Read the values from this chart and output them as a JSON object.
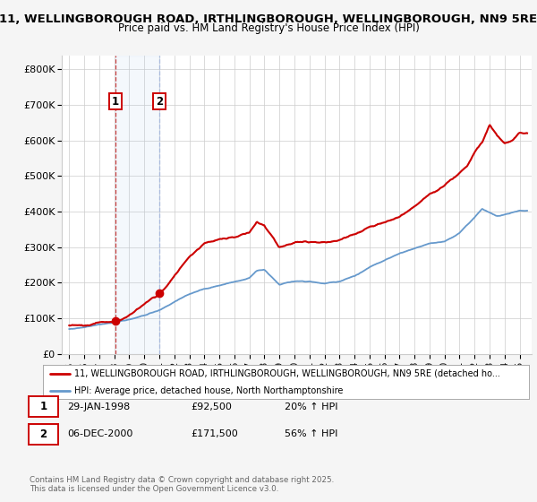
{
  "title1": "11, WELLINGBOROUGH ROAD, IRTHLINGBOROUGH, WELLINGBOROUGH, NN9 5RE",
  "title2": "Price paid vs. HM Land Registry's House Price Index (HPI)",
  "legend_line1": "11, WELLINGBOROUGH ROAD, IRTHLINGBOROUGH, WELLINGBOROUGH, NN9 5RE (detached ho...",
  "legend_line2": "HPI: Average price, detached house, North Northamptonshire",
  "footnote": "Contains HM Land Registry data © Crown copyright and database right 2025.\nThis data is licensed under the Open Government Licence v3.0.",
  "transaction1_label": "1",
  "transaction1_date": "29-JAN-1998",
  "transaction1_price": "£92,500",
  "transaction1_hpi": "20% ↑ HPI",
  "transaction2_label": "2",
  "transaction2_date": "06-DEC-2000",
  "transaction2_price": "£171,500",
  "transaction2_hpi": "56% ↑ HPI",
  "line_color_red": "#cc0000",
  "line_color_blue": "#6699cc",
  "background_color": "#f5f5f5",
  "plot_bg_color": "#ffffff",
  "grid_color": "#cccccc",
  "vline1_x": 1998.08,
  "vline2_x": 2001.0,
  "marker1_x": 1998.08,
  "marker1_y": 92500,
  "marker2_x": 2001.0,
  "marker2_y": 171500,
  "ylim_min": 0,
  "ylim_max": 840000,
  "xlim_min": 1994.5,
  "xlim_max": 2025.8,
  "yticks": [
    0,
    100000,
    200000,
    300000,
    400000,
    500000,
    600000,
    700000,
    800000
  ],
  "ytick_labels": [
    "£0",
    "£100K",
    "£200K",
    "£300K",
    "£400K",
    "£500K",
    "£600K",
    "£700K",
    "£800K"
  ],
  "xticks": [
    1995,
    1996,
    1997,
    1998,
    1999,
    2000,
    2001,
    2002,
    2003,
    2004,
    2005,
    2006,
    2007,
    2008,
    2009,
    2010,
    2011,
    2012,
    2013,
    2014,
    2015,
    2016,
    2017,
    2018,
    2019,
    2020,
    2021,
    2022,
    2023,
    2024,
    2025
  ]
}
